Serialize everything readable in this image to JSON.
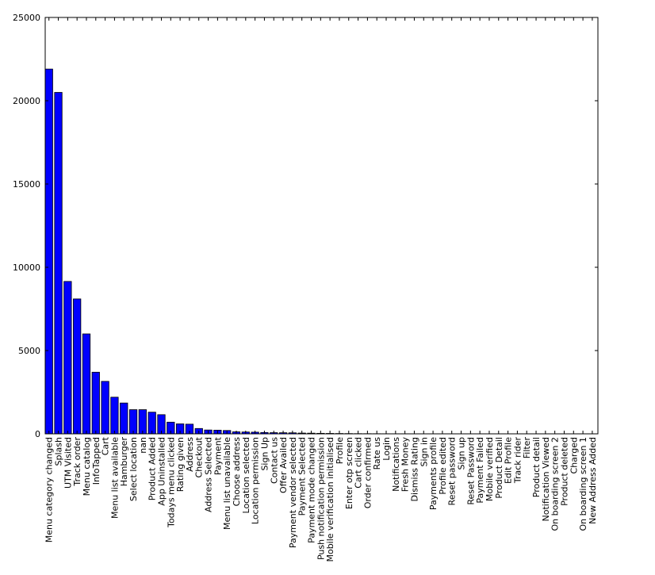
{
  "chart_data": {
    "type": "bar",
    "title": "",
    "xlabel": "",
    "ylabel": "",
    "ylim": [
      0,
      25000
    ],
    "yticks": [
      0,
      5000,
      10000,
      15000,
      20000,
      25000
    ],
    "grid": false,
    "legend": "none",
    "bar_color": "#0000ff",
    "bar_edge_color": "#000000",
    "categories": [
      "Menu category changed",
      "Splash",
      "UTM Visited",
      "Track order",
      "Menu catalog",
      "InfoTapped",
      "Cart",
      "Menu list available",
      "Hamburger",
      "Select location",
      "nan",
      "Product Added",
      "App Uninstalled",
      "Todays menu clicked",
      "Rating given",
      "Address",
      "Checkout",
      "Address Selected",
      "Payment",
      "Menu list unavailable",
      "Choose address",
      "Location selected",
      "Location permission",
      "Sign Up",
      "Contact us",
      "Offer Availed",
      "Payment vendor selected",
      "Payment Selected",
      "Payment mode changed",
      "Push notification permission",
      "Mobile verification initialised",
      "Profile",
      "Enter otp screen",
      "Cart clicked",
      "Order confirmed",
      "Rate us",
      "Login",
      "Notifications",
      "Fresh Money",
      "Dismiss Rating",
      "Sign in",
      "Payments profile",
      "Profile edited",
      "Reset password",
      "Sign up",
      "Reset Password",
      "Payment Failed",
      "Mobile verified",
      "Product Detail",
      "Edit Profile",
      "Track rider",
      "Filter",
      "Product detail",
      "Notification Viewed",
      "On boarding screen 2",
      "Product deleted",
      "Charged",
      "On boarding screen 1",
      "New Address Added"
    ],
    "values": [
      21900,
      20500,
      9150,
      8100,
      6000,
      3700,
      3150,
      2200,
      1850,
      1450,
      1450,
      1300,
      1150,
      700,
      600,
      580,
      320,
      230,
      220,
      200,
      120,
      110,
      100,
      80,
      70,
      65,
      60,
      45,
      40,
      30,
      25,
      20,
      15,
      12,
      10,
      8,
      6,
      5,
      5,
      4,
      3,
      3,
      2,
      2,
      2,
      2,
      1,
      1,
      1,
      1,
      1,
      1,
      1,
      1,
      1,
      1,
      1,
      1,
      1
    ]
  }
}
